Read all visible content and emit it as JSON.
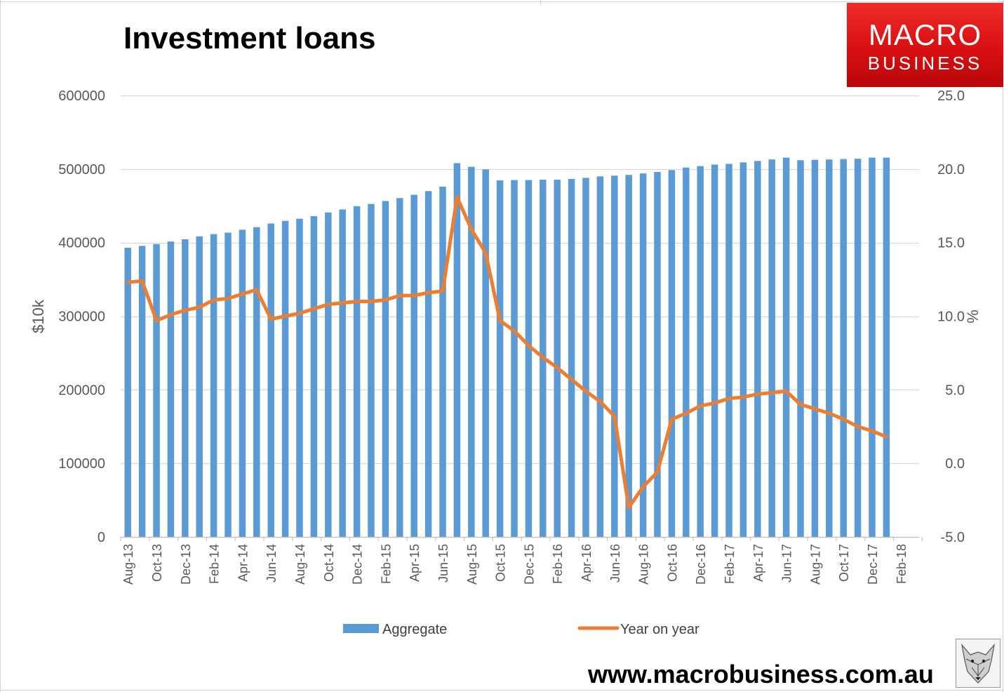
{
  "title": "Investment loans",
  "logo": {
    "line1": "MACRO",
    "line2": "BUSINESS"
  },
  "website": "www.macrobusiness.com.au",
  "colors": {
    "bars": "#5b9bd5",
    "line": "#ed7d31",
    "grid": "#d9d9d9",
    "axis_text": "#595959"
  },
  "chart_data": {
    "type": "bar",
    "title": "Investment loans",
    "x": [
      "Aug-13",
      "Sep-13",
      "Oct-13",
      "Nov-13",
      "Dec-13",
      "Jan-14",
      "Feb-14",
      "Mar-14",
      "Apr-14",
      "May-14",
      "Jun-14",
      "Jul-14",
      "Aug-14",
      "Sep-14",
      "Oct-14",
      "Nov-14",
      "Dec-14",
      "Jan-15",
      "Feb-15",
      "Mar-15",
      "Apr-15",
      "May-15",
      "Jun-15",
      "Jul-15",
      "Aug-15",
      "Sep-15",
      "Oct-15",
      "Nov-15",
      "Dec-15",
      "Jan-16",
      "Feb-16",
      "Mar-16",
      "Apr-16",
      "May-16",
      "Jun-16",
      "Jul-16",
      "Aug-16",
      "Sep-16",
      "Oct-16",
      "Nov-16",
      "Dec-16",
      "Jan-17",
      "Feb-17",
      "Mar-17",
      "Apr-17",
      "May-17",
      "Jun-17",
      "Jul-17",
      "Aug-17",
      "Sep-17",
      "Oct-17",
      "Nov-17",
      "Dec-17",
      "Jan-18"
    ],
    "x_tick_labels": [
      "Aug-13",
      "Oct-13",
      "Dec-13",
      "Feb-14",
      "Apr-14",
      "Jun-14",
      "Aug-14",
      "Oct-14",
      "Dec-14",
      "Feb-15",
      "Apr-15",
      "Jun-15",
      "Aug-15",
      "Oct-15",
      "Dec-15",
      "Feb-16",
      "Apr-16",
      "Jun-16",
      "Aug-16",
      "Oct-16",
      "Dec-16",
      "Feb-17",
      "Apr-17",
      "Jun-17",
      "Aug-17",
      "Oct-17",
      "Dec-17",
      "Feb-18"
    ],
    "series": [
      {
        "name": "Aggregate",
        "type": "bar",
        "axis": "left",
        "values": [
          393000,
          395500,
          398000,
          401500,
          404500,
          408500,
          411500,
          413500,
          417500,
          421000,
          426000,
          429500,
          432500,
          436000,
          441000,
          445000,
          449500,
          452500,
          456500,
          460500,
          465000,
          470000,
          476000,
          508000,
          503000,
          499500,
          484500,
          485000,
          485000,
          485500,
          485500,
          486500,
          488000,
          490000,
          491000,
          492000,
          494000,
          496000,
          498500,
          502000,
          504000,
          506000,
          507000,
          509000,
          511000,
          513000,
          515500,
          512000,
          512500,
          513000,
          513500,
          514000,
          515500,
          515500
        ]
      },
      {
        "name": "Year on year",
        "type": "line",
        "axis": "right",
        "values": [
          12.3,
          12.4,
          9.7,
          10.1,
          10.4,
          10.6,
          11.1,
          11.2,
          11.5,
          11.8,
          9.8,
          10.0,
          10.2,
          10.5,
          10.8,
          10.9,
          11.0,
          11.0,
          11.1,
          11.4,
          11.4,
          11.6,
          11.7,
          18.1,
          15.9,
          14.3,
          9.7,
          9.0,
          8.0,
          7.2,
          6.5,
          5.7,
          4.9,
          4.2,
          3.2,
          -3.0,
          -1.6,
          -0.6,
          3.0,
          3.4,
          3.9,
          4.1,
          4.4,
          4.5,
          4.7,
          4.8,
          4.9,
          4.0,
          3.7,
          3.4,
          3.0,
          2.5,
          2.2,
          1.8
        ]
      }
    ],
    "ylabel": "$10k",
    "ylim": [
      0,
      600000
    ],
    "yticks": [
      "0",
      "100000",
      "200000",
      "300000",
      "400000",
      "500000",
      "600000"
    ],
    "y2label": "%",
    "y2lim": [
      -5,
      25
    ],
    "y2ticks": [
      "-5.0",
      "0.0",
      "5.0",
      "10.0",
      "15.0",
      "20.0",
      "25.0"
    ],
    "grid": true,
    "legend": {
      "placement": "bottom",
      "entries": [
        {
          "label": "Aggregate",
          "kind": "bar"
        },
        {
          "label": "Year on year",
          "kind": "line"
        }
      ]
    }
  }
}
